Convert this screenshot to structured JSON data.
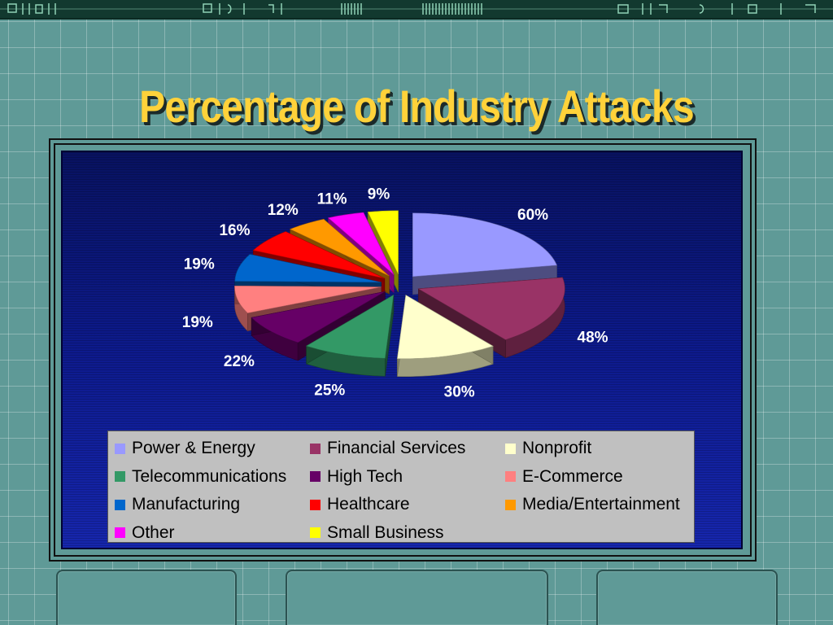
{
  "slide": {
    "title": "Percentage of Industry Attacks"
  },
  "chart_data": {
    "type": "pie",
    "title": "",
    "three_d": true,
    "exploded": true,
    "legend_position": "bottom",
    "categories": [
      "Power & Energy",
      "Financial Services",
      "Nonprofit",
      "Telecommunications",
      "High Tech",
      "E-Commerce",
      "Manufacturing",
      "Healthcare",
      "Media/Entertainment",
      "Other",
      "Small Business"
    ],
    "values": [
      60,
      48,
      30,
      25,
      22,
      19,
      19,
      16,
      12,
      11,
      9
    ],
    "labels": [
      "60%",
      "48%",
      "30%",
      "25%",
      "22%",
      "19%",
      "19%",
      "16%",
      "12%",
      "11%",
      "9%"
    ],
    "colors": [
      "#9999ff",
      "#993366",
      "#ffffcc",
      "#339966",
      "#660066",
      "#ff8080",
      "#0066cc",
      "#ff0000",
      "#ff9900",
      "#ff00ff",
      "#ffff00"
    ]
  }
}
